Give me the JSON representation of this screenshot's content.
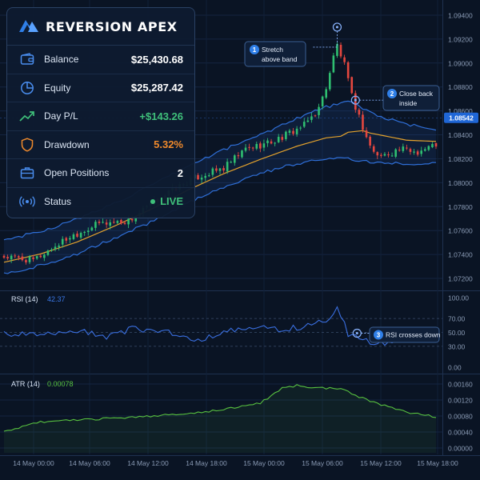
{
  "app": {
    "title": "REVERSION APEX",
    "accent": "#2f7fe8"
  },
  "stats": [
    {
      "key": "balance",
      "label": "Balance",
      "value": "$25,430.68",
      "icon": "wallet-icon",
      "tone": "white"
    },
    {
      "key": "equity",
      "label": "Equity",
      "value": "$25,287.42",
      "icon": "pie-chart-icon",
      "tone": "white"
    },
    {
      "key": "day-pl",
      "label": "Day P/L",
      "value": "+$143.26",
      "icon": "trend-up-icon",
      "tone": "green"
    },
    {
      "key": "drawdown",
      "label": "Drawdown",
      "value": "5.32%",
      "icon": "shield-icon",
      "tone": "orange"
    },
    {
      "key": "open-positions",
      "label": "Open Positions",
      "value": "2",
      "icon": "briefcase-icon",
      "tone": "white"
    },
    {
      "key": "status",
      "label": "Status",
      "value": "LIVE",
      "icon": "broadcast-icon",
      "tone": "live"
    }
  ],
  "chart_data": [
    {
      "type": "candlestick",
      "title": "",
      "current_price": "1.08542",
      "y_ticks": [
        "1.09400",
        "1.09200",
        "1.09000",
        "1.08800",
        "1.08600",
        "1.08400",
        "1.08200",
        "1.08000",
        "1.07800",
        "1.07600",
        "1.07400",
        "1.07200"
      ],
      "ylim": [
        1.0712,
        1.0946
      ],
      "x_ticks": [
        "14 May 00:00",
        "14 May 06:00",
        "14 May 12:00",
        "14 May 18:00",
        "15 May 00:00",
        "15 May 06:00",
        "15 May 12:00",
        "15 May 18:00"
      ],
      "mid_keypoints": [
        [
          0,
          1.0738
        ],
        [
          10,
          1.0745
        ],
        [
          20,
          1.0755
        ],
        [
          30,
          1.0768
        ],
        [
          40,
          1.0782
        ],
        [
          50,
          1.0798
        ],
        [
          60,
          1.0812
        ],
        [
          70,
          1.0824
        ],
        [
          80,
          1.0835
        ],
        [
          88,
          1.0842
        ],
        [
          94,
          1.0844
        ],
        [
          100,
          1.0838
        ],
        [
          110,
          1.0832
        ],
        [
          118,
          1.0831
        ]
      ],
      "band_width_keypoints": [
        [
          0,
          0.0014
        ],
        [
          40,
          0.0015
        ],
        [
          70,
          0.0016
        ],
        [
          90,
          0.0022
        ],
        [
          95,
          0.0024
        ],
        [
          105,
          0.0018
        ],
        [
          118,
          0.0014
        ]
      ],
      "close_keypoints": [
        [
          0,
          1.0738
        ],
        [
          8,
          1.0735
        ],
        [
          18,
          1.0755
        ],
        [
          26,
          1.0766
        ],
        [
          34,
          1.0768
        ],
        [
          44,
          1.079
        ],
        [
          52,
          1.0804
        ],
        [
          60,
          1.0812
        ],
        [
          66,
          1.0828
        ],
        [
          74,
          1.0835
        ],
        [
          82,
          1.0848
        ],
        [
          86,
          1.0862
        ],
        [
          88,
          1.088
        ],
        [
          90,
          1.0905
        ],
        [
          91,
          1.0915
        ],
        [
          93,
          1.0898
        ],
        [
          95,
          1.0872
        ],
        [
          97,
          1.0855
        ],
        [
          99,
          1.0838
        ],
        [
          101,
          1.0825
        ],
        [
          103,
          1.0822
        ],
        [
          108,
          1.0828
        ],
        [
          113,
          1.0826
        ],
        [
          118,
          1.0832
        ]
      ],
      "series": [
        {
          "name": "",
          "kind": "bollinger-band",
          "color": "#2f6fd8"
        },
        {
          "name": "",
          "kind": "moving-average",
          "color": "#e3a22d"
        }
      ],
      "bull_color": "#2fbf71",
      "bear_color": "#e5473f",
      "annotations": [
        {
          "num": "1",
          "lines": [
            "Stretch",
            "above band"
          ],
          "candle": 91,
          "price": 1.093
        },
        {
          "num": "2",
          "lines": [
            "Close back",
            "inside"
          ],
          "candle": 96,
          "price": 1.0869
        }
      ]
    },
    {
      "type": "line",
      "title": "RSI (14)",
      "value": "42.37",
      "color": "#3a6fe0",
      "y_ticks": [
        "100.00",
        "70.00",
        "50.00",
        "30.00",
        "0.00"
      ],
      "ylim": [
        0,
        100
      ],
      "levels": [
        70,
        50,
        30
      ],
      "keypoints": [
        [
          0,
          48
        ],
        [
          10,
          45
        ],
        [
          20,
          52
        ],
        [
          28,
          44
        ],
        [
          35,
          55
        ],
        [
          44,
          52
        ],
        [
          52,
          38
        ],
        [
          60,
          50
        ],
        [
          68,
          57
        ],
        [
          76,
          54
        ],
        [
          84,
          60
        ],
        [
          89,
          70
        ],
        [
          91,
          85
        ],
        [
          92,
          75
        ],
        [
          94,
          48
        ],
        [
          97,
          40
        ],
        [
          100,
          36
        ],
        [
          105,
          35
        ],
        [
          112,
          40
        ],
        [
          118,
          42
        ]
      ],
      "annotation": {
        "num": "3",
        "text": "RSI crosses down",
        "candle": 96,
        "value": 50
      }
    },
    {
      "type": "area-line",
      "title": "ATR (14)",
      "value": "0.00078",
      "color": "#58c240",
      "y_ticks": [
        "0.00160",
        "0.00120",
        "0.00080",
        "0.00040",
        "0.00000"
      ],
      "ylim": [
        0,
        0.0018
      ],
      "keypoints": [
        [
          0,
          0.0004
        ],
        [
          10,
          0.00065
        ],
        [
          25,
          0.00072
        ],
        [
          40,
          0.0008
        ],
        [
          50,
          0.00086
        ],
        [
          60,
          0.00096
        ],
        [
          70,
          0.00112
        ],
        [
          76,
          0.0015
        ],
        [
          80,
          0.00156
        ],
        [
          86,
          0.0015
        ],
        [
          92,
          0.00148
        ],
        [
          97,
          0.00128
        ],
        [
          103,
          0.00108
        ],
        [
          110,
          0.0009
        ],
        [
          118,
          0.00078
        ]
      ]
    }
  ]
}
